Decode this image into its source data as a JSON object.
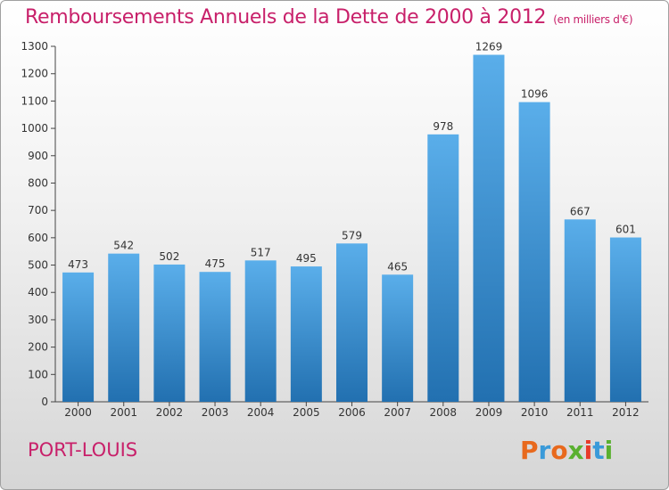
{
  "header": {
    "title": "Remboursements Annuels de la Dette de 2000 à 2012",
    "unit": "(en milliers d'€)"
  },
  "footer": {
    "place": "PORT-LOUIS",
    "logo": "Proxiti"
  },
  "colors": {
    "title": "#c8206a",
    "bar_top": "#5aaeea",
    "bar_bottom": "#2270b0",
    "logo_letters": [
      "#e8691d",
      "#3a9ad9",
      "#e8691d",
      "#5ab030",
      "#e83a2a",
      "#3a9ad9",
      "#5ab030"
    ]
  },
  "chart_data": {
    "type": "bar",
    "title": "Remboursements Annuels de la Dette de 2000 à 2012",
    "unit": "(en milliers d'€)",
    "categories": [
      "2000",
      "2001",
      "2002",
      "2003",
      "2004",
      "2005",
      "2006",
      "2007",
      "2008",
      "2009",
      "2010",
      "2011",
      "2012"
    ],
    "values": [
      473,
      542,
      502,
      475,
      517,
      495,
      579,
      465,
      978,
      1269,
      1096,
      667,
      601
    ],
    "ylim": [
      0,
      1300
    ],
    "yticks": [
      0,
      100,
      200,
      300,
      400,
      500,
      600,
      700,
      800,
      900,
      1000,
      1100,
      1200,
      1300
    ],
    "grid": false,
    "legend": "none"
  }
}
